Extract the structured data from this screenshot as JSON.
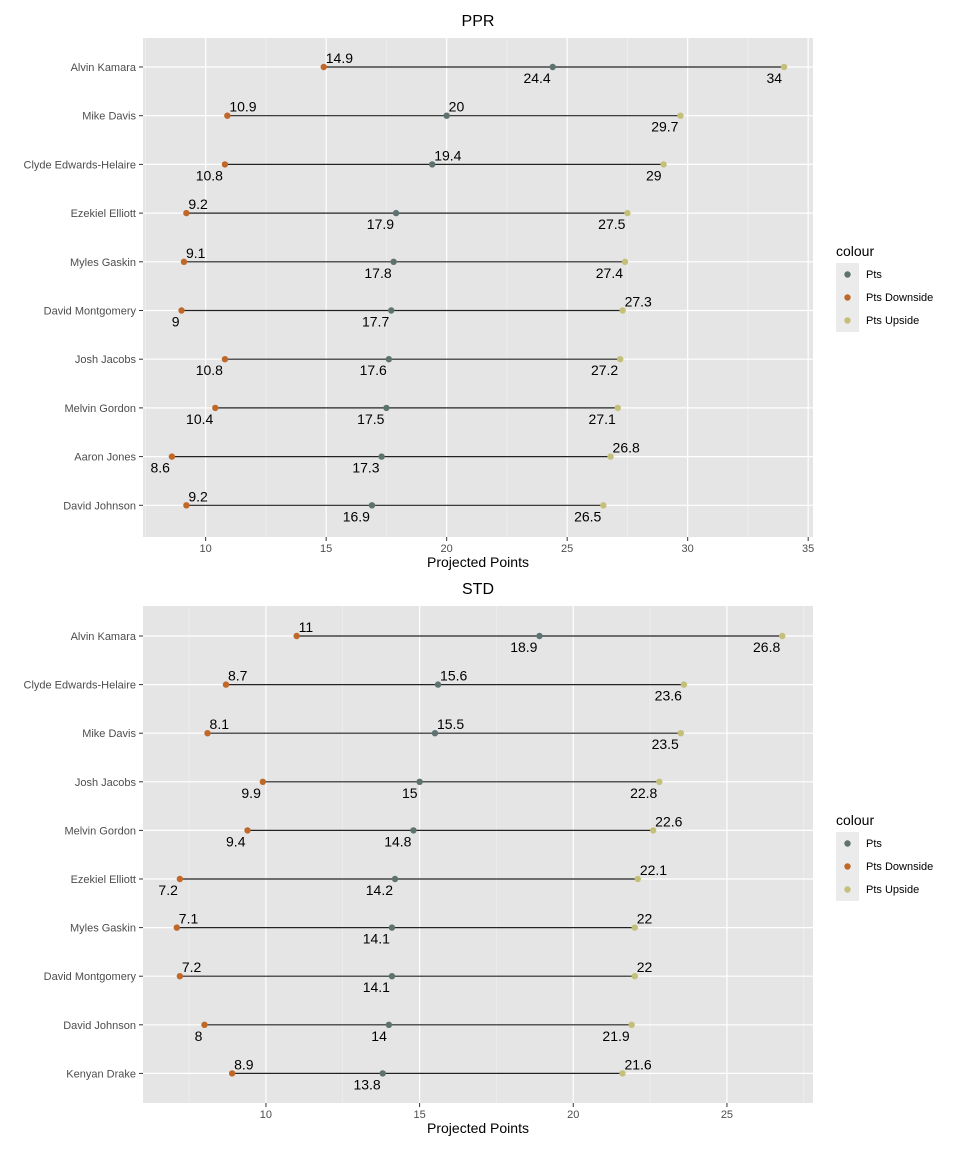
{
  "colors": {
    "Pts": "#5e7370",
    "Pts Downside": "#c0682a",
    "Pts Upside": "#c4c07a",
    "panel": "#e5e5e5",
    "grid_major": "#ffffff",
    "grid_minor": "#f2f2f2",
    "segment": "#222222",
    "legend_key_bg": "#ebebeb"
  },
  "chart_data": [
    {
      "type": "dumbbell",
      "title": "PPR",
      "xlabel": "Projected Points",
      "ylabel": "",
      "xlim": [
        7.4,
        35.2
      ],
      "xticks": [
        10,
        15,
        20,
        25,
        30,
        35
      ],
      "xtick_labels": [
        "10",
        "15",
        "20",
        "25",
        "30",
        "35"
      ],
      "grid": true,
      "legend": {
        "title": "colour",
        "position": "right",
        "entries": [
          "Pts",
          "Pts Downside",
          "Pts Upside"
        ]
      },
      "categories": [
        "Alvin Kamara",
        "Mike Davis",
        "Clyde Edwards-Helaire",
        "Ezekiel Elliott",
        "Myles Gaskin",
        "David Montgomery",
        "Josh Jacobs",
        "Melvin Gordon",
        "Aaron Jones",
        "David Johnson"
      ],
      "series": [
        {
          "name": "Pts",
          "values": [
            24.4,
            20,
            19.4,
            17.9,
            17.8,
            17.7,
            17.6,
            17.5,
            17.3,
            16.9
          ],
          "labels": [
            "24.4",
            "20",
            "19.4",
            "17.9",
            "17.8",
            "17.7",
            "17.6",
            "17.5",
            "17.3",
            "16.9"
          ],
          "label_positions": [
            "below",
            "above",
            "above",
            "below",
            "below",
            "below",
            "below",
            "below",
            "below",
            "below"
          ]
        },
        {
          "name": "Pts Downside",
          "values": [
            14.9,
            10.9,
            10.8,
            9.2,
            9.1,
            9,
            10.8,
            10.4,
            8.6,
            9.2
          ],
          "labels": [
            "14.9",
            "10.9",
            "10.8",
            "9.2",
            "9.1",
            "9",
            "10.8",
            "10.4",
            "8.6",
            "9.2"
          ],
          "label_positions": [
            "above",
            "above",
            "below",
            "above",
            "above",
            "below",
            "below",
            "below",
            "below",
            "above"
          ]
        },
        {
          "name": "Pts Upside",
          "values": [
            34,
            29.7,
            29,
            27.5,
            27.4,
            27.3,
            27.2,
            27.1,
            26.8,
            26.5
          ],
          "labels": [
            "34",
            "29.7",
            "29",
            "27.5",
            "27.4",
            "27.3",
            "27.2",
            "27.1",
            "26.8",
            "26.5"
          ],
          "label_positions": [
            "below",
            "below",
            "below",
            "below",
            "below",
            "above",
            "below",
            "below",
            "above",
            "below"
          ]
        }
      ]
    },
    {
      "type": "dumbbell",
      "title": "STD",
      "xlabel": "Projected Points",
      "ylabel": "",
      "xlim": [
        6.0,
        27.8
      ],
      "xticks": [
        10,
        15,
        20,
        25
      ],
      "xtick_labels": [
        "10",
        "15",
        "20",
        "25"
      ],
      "grid": true,
      "legend": {
        "title": "colour",
        "position": "right",
        "entries": [
          "Pts",
          "Pts Downside",
          "Pts Upside"
        ]
      },
      "categories": [
        "Alvin Kamara",
        "Clyde Edwards-Helaire",
        "Mike Davis",
        "Josh Jacobs",
        "Melvin Gordon",
        "Ezekiel Elliott",
        "Myles Gaskin",
        "David Montgomery",
        "David Johnson",
        "Kenyan Drake"
      ],
      "series": [
        {
          "name": "Pts",
          "values": [
            18.9,
            15.6,
            15.5,
            15,
            14.8,
            14.2,
            14.1,
            14.1,
            14,
            13.8
          ],
          "labels": [
            "18.9",
            "15.6",
            "15.5",
            "15",
            "14.8",
            "14.2",
            "14.1",
            "14.1",
            "14",
            "13.8"
          ],
          "label_positions": [
            "below",
            "above",
            "above",
            "below",
            "below",
            "below",
            "below",
            "below",
            "below",
            "below"
          ]
        },
        {
          "name": "Pts Downside",
          "values": [
            11,
            8.7,
            8.1,
            9.9,
            9.4,
            7.2,
            7.1,
            7.2,
            8,
            8.9
          ],
          "labels": [
            "11",
            "8.7",
            "8.1",
            "9.9",
            "9.4",
            "7.2",
            "7.1",
            "7.2",
            "8",
            "8.9"
          ],
          "label_positions": [
            "above",
            "above",
            "above",
            "below",
            "below",
            "below",
            "above",
            "above",
            "below",
            "above"
          ]
        },
        {
          "name": "Pts Upside",
          "values": [
            26.8,
            23.6,
            23.5,
            22.8,
            22.6,
            22.1,
            22,
            22,
            21.9,
            21.6
          ],
          "labels": [
            "26.8",
            "23.6",
            "23.5",
            "22.8",
            "22.6",
            "22.1",
            "22",
            "22",
            "21.9",
            "21.6"
          ],
          "label_positions": [
            "below",
            "below",
            "below",
            "below",
            "above",
            "above",
            "above",
            "above",
            "below",
            "above"
          ]
        }
      ]
    }
  ]
}
